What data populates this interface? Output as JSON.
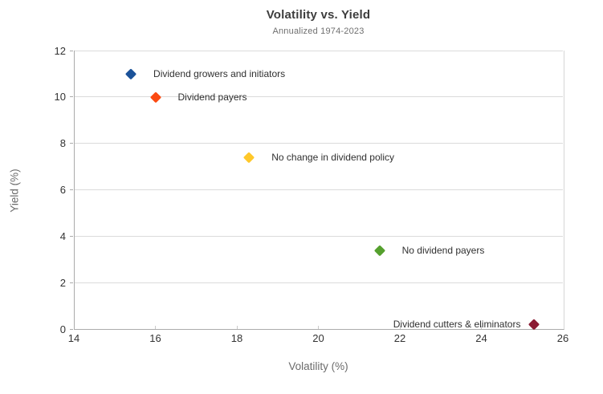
{
  "chart_data": {
    "type": "scatter",
    "title": "Volatility vs. Yield",
    "subtitle": "Annualized 1974-2023",
    "xlabel": "Volatility (%)",
    "ylabel": "Yield (%)",
    "xlim": [
      14,
      26
    ],
    "ylim": [
      0,
      12
    ],
    "x_ticks": [
      14,
      16,
      18,
      20,
      22,
      24,
      26
    ],
    "y_ticks": [
      0,
      2,
      4,
      6,
      8,
      10,
      12
    ],
    "grid": "horizontal-only",
    "legend": "labels-next-to-points",
    "points": [
      {
        "label": "Dividend growers and initiators",
        "x": 15.4,
        "y": 11.0,
        "color": "#1B5299",
        "label_side": "right"
      },
      {
        "label": "Dividend payers",
        "x": 16.0,
        "y": 10.0,
        "color": "#FB4A12",
        "label_side": "right"
      },
      {
        "label": "No change in dividend policy",
        "x": 18.3,
        "y": 7.4,
        "color": "#FFC82A",
        "label_side": "right"
      },
      {
        "label": "No dividend payers",
        "x": 21.5,
        "y": 3.4,
        "color": "#55A02E",
        "label_side": "right"
      },
      {
        "label": "Dividend cutters & eliminators",
        "x": 25.3,
        "y": 0.2,
        "color": "#8B1B33",
        "label_side": "left"
      }
    ]
  }
}
